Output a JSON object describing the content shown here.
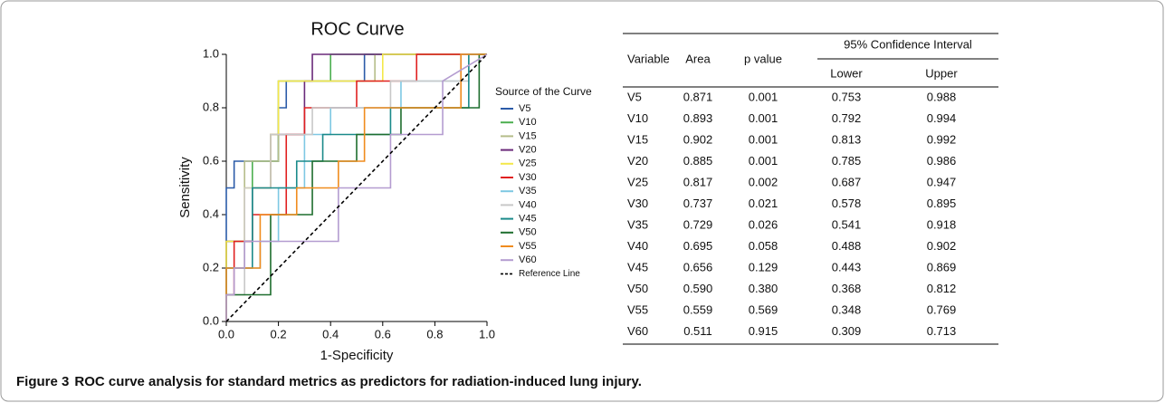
{
  "chart_data": {
    "type": "step-line",
    "title": "ROC Curve",
    "x_label": "1-Specificity",
    "y_label": "Sensitivity",
    "xlim": [
      0,
      1
    ],
    "ylim": [
      0,
      1
    ],
    "xticks": [
      {
        "value": 0,
        "label": "0.0"
      },
      0.2,
      0.4,
      0.6,
      0.8,
      {
        "value": 1,
        "label": "1.0"
      }
    ],
    "yticks": [
      {
        "value": 0,
        "label": "0.0"
      },
      0.2,
      0.4,
      0.6,
      0.8,
      {
        "value": 1,
        "label": "1.0"
      }
    ],
    "legend_title": "Source of the Curve",
    "legend_position": "right",
    "series": [
      {
        "name": "V5",
        "color": "#2b5ba8",
        "x": [
          0,
          0,
          0.03,
          0.03,
          0.2,
          0.2,
          0.23,
          0.23,
          0.53,
          0.53,
          1
        ],
        "values": [
          0,
          0.5,
          0.5,
          0.6,
          0.6,
          0.8,
          0.8,
          0.9,
          0.9,
          1,
          1
        ]
      },
      {
        "name": "V10",
        "color": "#4caf50",
        "x": [
          0,
          0,
          0.1,
          0.1,
          0.2,
          0.2,
          0.4,
          0.4,
          1
        ],
        "values": [
          0,
          0.3,
          0.3,
          0.6,
          0.6,
          0.9,
          0.9,
          1,
          1
        ]
      },
      {
        "name": "V15",
        "color": "#b5bd8a",
        "x": [
          0,
          0,
          0.07,
          0.07,
          0.2,
          0.2,
          0.57,
          0.57,
          1
        ],
        "values": [
          0,
          0.2,
          0.2,
          0.6,
          0.6,
          0.9,
          0.9,
          1,
          1
        ]
      },
      {
        "name": "V20",
        "color": "#6a2a7a",
        "x": [
          0,
          0,
          0.1,
          0.1,
          0.17,
          0.17,
          0.3,
          0.3,
          0.33,
          0.33,
          1
        ],
        "values": [
          0,
          0.3,
          0.3,
          0.5,
          0.5,
          0.7,
          0.7,
          0.9,
          0.9,
          1,
          1
        ]
      },
      {
        "name": "V25",
        "color": "#f4e84a",
        "x": [
          0,
          0,
          0.07,
          0.07,
          0.17,
          0.17,
          0.2,
          0.2,
          0.6,
          0.6,
          1
        ],
        "values": [
          0,
          0.3,
          0.3,
          0.5,
          0.5,
          0.7,
          0.7,
          0.9,
          0.9,
          1,
          1
        ]
      },
      {
        "name": "V30",
        "color": "#e02020",
        "x": [
          0,
          0,
          0.03,
          0.03,
          0.1,
          0.1,
          0.23,
          0.23,
          0.3,
          0.3,
          0.5,
          0.5,
          0.73,
          0.73,
          1
        ],
        "values": [
          0,
          0.1,
          0.1,
          0.3,
          0.3,
          0.4,
          0.4,
          0.7,
          0.7,
          0.8,
          0.8,
          0.9,
          0.9,
          1,
          1
        ]
      },
      {
        "name": "V35",
        "color": "#7ec8e3",
        "x": [
          0,
          0,
          0.13,
          0.13,
          0.2,
          0.2,
          0.3,
          0.3,
          0.4,
          0.4,
          0.67,
          0.67,
          0.9,
          0.9,
          1
        ],
        "values": [
          0,
          0.2,
          0.2,
          0.3,
          0.3,
          0.5,
          0.5,
          0.7,
          0.7,
          0.8,
          0.8,
          0.9,
          0.9,
          1,
          1
        ]
      },
      {
        "name": "V40",
        "color": "#c8c8c8",
        "x": [
          0,
          0,
          0.07,
          0.07,
          0.17,
          0.17,
          0.33,
          0.33,
          0.63,
          0.63,
          0.93,
          0.93,
          1
        ],
        "values": [
          0,
          0.1,
          0.1,
          0.5,
          0.5,
          0.7,
          0.7,
          0.8,
          0.8,
          0.9,
          0.9,
          1,
          1
        ]
      },
      {
        "name": "V45",
        "color": "#1a8a8a",
        "x": [
          0,
          0,
          0.1,
          0.1,
          0.27,
          0.27,
          0.37,
          0.37,
          0.63,
          0.63,
          0.93,
          0.93,
          1
        ],
        "values": [
          0,
          0.2,
          0.2,
          0.5,
          0.5,
          0.6,
          0.6,
          0.7,
          0.7,
          0.8,
          0.8,
          1,
          1
        ]
      },
      {
        "name": "V50",
        "color": "#1e6e2e",
        "x": [
          0,
          0,
          0.17,
          0.17,
          0.33,
          0.33,
          0.5,
          0.5,
          0.67,
          0.67,
          0.97,
          0.97,
          1
        ],
        "values": [
          0,
          0.1,
          0.1,
          0.4,
          0.4,
          0.6,
          0.6,
          0.7,
          0.7,
          0.8,
          0.8,
          1,
          1
        ]
      },
      {
        "name": "V55",
        "color": "#f08c1e",
        "x": [
          0,
          0,
          0.13,
          0.13,
          0.27,
          0.27,
          0.43,
          0.43,
          0.53,
          0.53,
          0.9,
          0.9,
          1
        ],
        "values": [
          0,
          0.2,
          0.2,
          0.4,
          0.4,
          0.5,
          0.5,
          0.6,
          0.6,
          0.8,
          0.8,
          1,
          1
        ]
      },
      {
        "name": "V60",
        "color": "#b49cd0",
        "x": [
          0,
          0,
          0.03,
          0.03,
          0.07,
          0.07,
          0.43,
          0.43,
          0.63,
          0.63,
          0.83,
          0.83,
          1
        ],
        "values": [
          0,
          0.1,
          0.1,
          0.2,
          0.2,
          0.3,
          0.3,
          0.5,
          0.5,
          0.7,
          0.7,
          0.9,
          1
        ]
      }
    ],
    "reference_line": {
      "name": "Reference Line",
      "color": "#000000",
      "dashed": true,
      "x": [
        0,
        1
      ],
      "values": [
        0,
        1
      ]
    }
  },
  "table": {
    "columns": [
      "Variable",
      "Area",
      "p value"
    ],
    "group_header": "95% Confidence Interval",
    "subcolumns": [
      "Lower",
      "Upper"
    ],
    "rows": [
      [
        "V5",
        "0.871",
        "0.001",
        "0.753",
        "0.988"
      ],
      [
        "V10",
        "0.893",
        "0.001",
        "0.792",
        "0.994"
      ],
      [
        "V15",
        "0.902",
        "0.001",
        "0.813",
        "0.992"
      ],
      [
        "V20",
        "0.885",
        "0.001",
        "0.785",
        "0.986"
      ],
      [
        "V25",
        "0.817",
        "0.002",
        "0.687",
        "0.947"
      ],
      [
        "V30",
        "0.737",
        "0.021",
        "0.578",
        "0.895"
      ],
      [
        "V35",
        "0.729",
        "0.026",
        "0.541",
        "0.918"
      ],
      [
        "V40",
        "0.695",
        "0.058",
        "0.488",
        "0.902"
      ],
      [
        "V45",
        "0.656",
        "0.129",
        "0.443",
        "0.869"
      ],
      [
        "V50",
        "0.590",
        "0.380",
        "0.368",
        "0.812"
      ],
      [
        "V55",
        "0.559",
        "0.569",
        "0.348",
        "0.769"
      ],
      [
        "V60",
        "0.511",
        "0.915",
        "0.309",
        "0.713"
      ]
    ]
  },
  "caption": {
    "label": "Figure 3",
    "text": "ROC curve analysis for standard metrics as predictors for radiation-induced lung injury."
  }
}
